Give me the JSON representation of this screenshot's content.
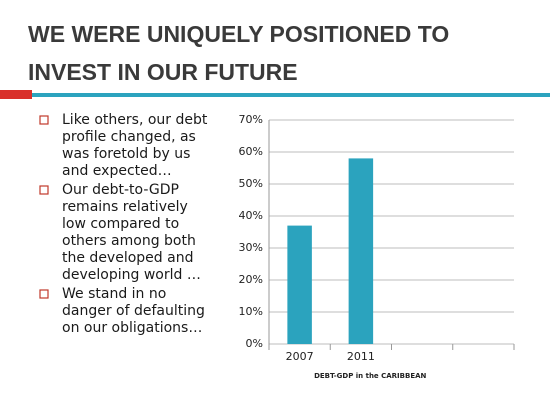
{
  "title": [
    "WE WERE UNIQUELY POSITIONED TO",
    "INVEST IN OUR FUTURE"
  ],
  "bullets": [
    [
      "Like others, our debt",
      "profile changed, as",
      "was foretold by us",
      "and expected…"
    ],
    [
      "Our debt-to-GDP",
      "remains relatively",
      "low compared to",
      "others among both",
      "the developed and",
      "developing world …"
    ],
    [
      "We stand in no",
      "danger of defaulting",
      "on our obligations…"
    ]
  ],
  "chart_data": {
    "type": "bar",
    "x_label": "DEBT-GDP in the CARIBBEAN",
    "categories": [
      "2007",
      "2011",
      null,
      null
    ],
    "values": [
      37,
      58,
      null,
      null
    ],
    "color": "#2ba3be",
    "ylim": [
      0,
      70
    ],
    "yticks": [
      {
        "value": 0,
        "label": "0%"
      },
      {
        "value": 10,
        "label": "10%"
      },
      {
        "value": 20,
        "label": "20%"
      },
      {
        "value": 30,
        "label": "30%"
      },
      {
        "value": 40,
        "label": "40%"
      },
      {
        "value": 50,
        "label": "50%"
      },
      {
        "value": 60,
        "label": "60%"
      },
      {
        "value": 70,
        "label": "70%"
      }
    ],
    "grid": true
  }
}
